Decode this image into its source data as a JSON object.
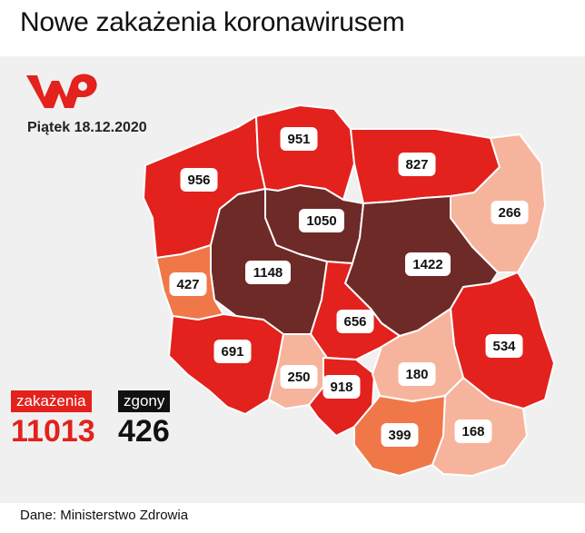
{
  "title": "Nowe zakażenia koronawirusem",
  "date": "Piątek 18.12.2020",
  "logo_icon": "wp-logo",
  "footer": "Dane: Ministerstwo Zdrowia",
  "stats": {
    "infections_label": "zakażenia",
    "infections_value": "11013",
    "deaths_label": "zgony",
    "deaths_value": "426"
  },
  "colors": {
    "very_high": "#6e2a26",
    "high": "#e3211d",
    "medium": "#f07848",
    "low": "#f7b49c",
    "background": "#f0f0f0",
    "accent": "#e3211d"
  },
  "regions": [
    {
      "id": "zachodniopomorskie",
      "value": "956",
      "level": "high"
    },
    {
      "id": "pomorskie",
      "value": "951",
      "level": "high"
    },
    {
      "id": "warminsko-mazurskie",
      "value": "827",
      "level": "high"
    },
    {
      "id": "podlaskie",
      "value": "266",
      "level": "low"
    },
    {
      "id": "kujawsko-pomorskie",
      "value": "1050",
      "level": "very_high"
    },
    {
      "id": "wielkopolskie",
      "value": "1148",
      "level": "very_high"
    },
    {
      "id": "mazowieckie",
      "value": "1422",
      "level": "very_high"
    },
    {
      "id": "lubuskie",
      "value": "427",
      "level": "medium"
    },
    {
      "id": "lodzkie",
      "value": "656",
      "level": "high"
    },
    {
      "id": "lubelskie",
      "value": "534",
      "level": "high"
    },
    {
      "id": "dolnoslaskie",
      "value": "691",
      "level": "high"
    },
    {
      "id": "opolskie",
      "value": "250",
      "level": "low"
    },
    {
      "id": "slaskie",
      "value": "918",
      "level": "high"
    },
    {
      "id": "swietokrzyskie",
      "value": "180",
      "level": "low"
    },
    {
      "id": "malopolskie",
      "value": "399",
      "level": "medium"
    },
    {
      "id": "podkarpackie",
      "value": "168",
      "level": "low"
    }
  ]
}
